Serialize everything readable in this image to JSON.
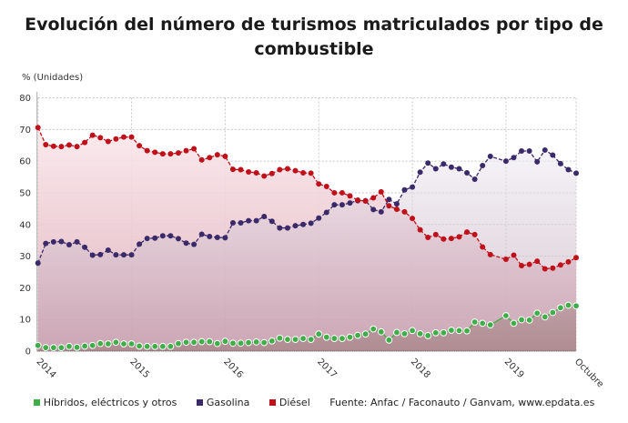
{
  "chart_data": {
    "type": "area",
    "title": "Evolución del número de turismos matriculados por tipo de combustible",
    "ylabel": "% (Unidades)",
    "ylim": [
      0,
      80
    ],
    "yticks": [
      "0",
      "10",
      "20",
      "30",
      "40",
      "50",
      "60",
      "70",
      "80"
    ],
    "xtick_labels": [
      "2014",
      "2015",
      "2016",
      "2017",
      "2018",
      "2019",
      "Octubre"
    ],
    "x_start": "2014-01",
    "x_end": "2019-10",
    "grid": true,
    "legend_placement": "bottom",
    "source": "Fuente: Anfac / Faconauto / Ganvam, www.epdata.es",
    "series": [
      {
        "name": "Híbridos, eléctricos y otros",
        "color": "#3fae49",
        "values": [
          1.8,
          1.1,
          1.1,
          1.1,
          1.5,
          1.2,
          1.6,
          1.8,
          2.4,
          2.3,
          2.8,
          2.3,
          2.3,
          1.6,
          1.5,
          1.5,
          1.5,
          1.5,
          2.4,
          2.8,
          2.8,
          3.0,
          3.0,
          2.4,
          3.1,
          2.5,
          2.5,
          2.7,
          2.9,
          2.7,
          3.2,
          4.1,
          3.7,
          3.7,
          4.0,
          3.7,
          5.4,
          4.4,
          4.0,
          4.0,
          4.4,
          5.0,
          5.4,
          7.0,
          6.1,
          3.5,
          5.9,
          5.5,
          6.5,
          5.5,
          4.9,
          5.8,
          5.8,
          6.6,
          6.5,
          6.4,
          9.2,
          8.8,
          8.3,
          null,
          11.2,
          8.8,
          9.9,
          9.8,
          12.0,
          10.8,
          12.2,
          13.7,
          14.5,
          14.3
        ]
      },
      {
        "name": "Gasolina",
        "color": "#3b2a6a",
        "values": [
          27.8,
          34.0,
          34.5,
          34.6,
          33.6,
          34.5,
          32.8,
          30.3,
          30.5,
          31.9,
          30.4,
          30.4,
          30.4,
          33.8,
          35.6,
          35.7,
          36.4,
          36.4,
          35.5,
          34.1,
          33.7,
          36.9,
          36.2,
          35.9,
          35.8,
          40.5,
          40.5,
          41.2,
          41.2,
          42.5,
          41.0,
          38.9,
          38.9,
          39.6,
          40.0,
          40.4,
          42.0,
          43.8,
          46.2,
          46.2,
          46.8,
          47.5,
          47.5,
          44.7,
          44.0,
          47.9,
          46.5,
          50.9,
          51.8,
          56.5,
          59.4,
          57.6,
          59.1,
          58.1,
          57.6,
          56.3,
          54.3,
          58.6,
          61.5,
          null,
          60.0,
          61.1,
          63.2,
          63.2,
          59.8,
          63.5,
          61.9,
          59.2,
          57.3,
          56.2
        ]
      },
      {
        "name": "Diésel",
        "color": "#c0101a",
        "values": [
          70.6,
          65.2,
          64.7,
          64.6,
          65.1,
          64.6,
          65.9,
          68.2,
          67.4,
          66.2,
          67.0,
          67.6,
          67.6,
          64.9,
          63.3,
          62.8,
          62.3,
          62.3,
          62.6,
          63.3,
          63.9,
          60.4,
          61.1,
          62.0,
          61.5,
          57.4,
          57.3,
          56.6,
          56.3,
          55.3,
          56.1,
          57.3,
          57.6,
          57.0,
          56.3,
          56.2,
          52.8,
          52.0,
          50.0,
          50.0,
          49.0,
          47.7,
          47.4,
          48.4,
          50.3,
          45.9,
          44.8,
          44.0,
          41.9,
          38.3,
          35.9,
          36.8,
          35.4,
          35.6,
          36.1,
          37.6,
          36.8,
          32.9,
          30.5,
          null,
          29.0,
          30.3,
          27.0,
          27.4,
          28.4,
          26.0,
          26.2,
          27.2,
          28.2,
          29.5
        ]
      }
    ]
  }
}
